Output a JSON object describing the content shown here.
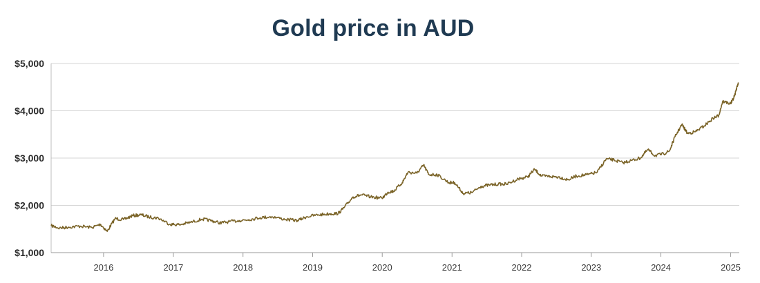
{
  "chart_data": {
    "type": "line",
    "title": "Gold price in AUD",
    "xlabel": "",
    "ylabel": "",
    "xlim": [
      "2015-04-01",
      "2025-02-15"
    ],
    "ylim": [
      1000,
      5000
    ],
    "grid": "horizontal",
    "legend": "none",
    "yticks": [
      1000,
      2000,
      3000,
      4000,
      5000
    ],
    "ytick_labels": [
      "$1,000",
      "$2,000",
      "$3,000",
      "$4,000",
      "$5,000"
    ],
    "xticks": [
      "2016-01-01",
      "2017-01-01",
      "2018-01-01",
      "2019-01-01",
      "2020-01-01",
      "2021-01-01",
      "2022-01-01",
      "2023-01-01",
      "2024-01-01",
      "2025-01-01"
    ],
    "xtick_labels": [
      "2016",
      "2017",
      "2018",
      "2019",
      "2020",
      "2021",
      "2022",
      "2023",
      "2024",
      "2025"
    ],
    "colors": {
      "line": "#7a6327",
      "grid": "#d4d4d4",
      "title": "#1f3a52"
    },
    "series": [
      {
        "x": [
          "2015-04-01",
          "2015-05-15",
          "2015-07-01",
          "2015-09-01",
          "2015-11-01",
          "2015-12-15",
          "2016-01-20",
          "2016-03-01",
          "2016-04-15",
          "2016-06-01",
          "2016-07-15",
          "2016-09-01",
          "2016-10-15",
          "2016-12-15",
          "2017-02-01",
          "2017-04-01",
          "2017-06-01",
          "2017-07-15",
          "2017-09-01",
          "2017-10-15",
          "2017-12-15",
          "2018-02-01",
          "2018-04-01",
          "2018-06-01",
          "2018-08-15",
          "2018-10-15",
          "2018-12-01",
          "2019-02-01",
          "2019-04-01",
          "2019-05-15",
          "2019-06-15",
          "2019-08-01",
          "2019-09-15",
          "2019-11-01",
          "2019-12-31",
          "2020-02-01",
          "2020-03-01",
          "2020-04-15",
          "2020-05-15",
          "2020-07-01",
          "2020-08-05",
          "2020-09-01",
          "2020-10-15",
          "2020-12-15",
          "2021-01-15",
          "2021-03-01",
          "2021-04-15",
          "2021-06-01",
          "2021-07-15",
          "2021-09-01",
          "2021-10-15",
          "2021-12-15",
          "2022-02-01",
          "2022-03-10",
          "2022-04-15",
          "2022-06-01",
          "2022-07-15",
          "2022-09-01",
          "2022-10-15",
          "2022-12-15",
          "2023-02-01",
          "2023-03-20",
          "2023-05-01",
          "2023-06-15",
          "2023-08-01",
          "2023-09-15",
          "2023-10-25",
          "2023-12-01",
          "2024-01-15",
          "2024-02-15",
          "2024-03-15",
          "2024-04-20",
          "2024-05-20",
          "2024-07-01",
          "2024-08-15",
          "2024-10-01",
          "2024-10-30",
          "2024-11-20",
          "2025-01-01",
          "2025-01-20",
          "2025-02-10"
        ],
        "y": [
          1570,
          1520,
          1540,
          1560,
          1530,
          1600,
          1450,
          1720,
          1700,
          1780,
          1800,
          1750,
          1730,
          1600,
          1590,
          1640,
          1710,
          1680,
          1630,
          1650,
          1680,
          1700,
          1740,
          1760,
          1700,
          1680,
          1760,
          1800,
          1820,
          1830,
          1950,
          2180,
          2220,
          2180,
          2150,
          2280,
          2300,
          2480,
          2700,
          2680,
          2850,
          2650,
          2650,
          2480,
          2480,
          2250,
          2270,
          2400,
          2430,
          2450,
          2450,
          2560,
          2600,
          2760,
          2620,
          2610,
          2600,
          2540,
          2620,
          2650,
          2700,
          2980,
          2960,
          2900,
          2950,
          3000,
          3180,
          3050,
          3090,
          3150,
          3450,
          3710,
          3520,
          3560,
          3680,
          3840,
          3900,
          4200,
          4150,
          4300,
          4600
        ]
      }
    ]
  }
}
